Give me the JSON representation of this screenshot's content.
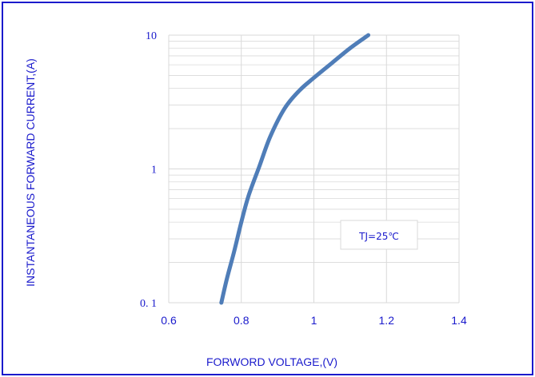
{
  "chart_data": {
    "type": "line",
    "title": "",
    "xlabel": "FORWORD VOLTAGE,(V)",
    "ylabel": "INSTANTANEOUS FORWARD CURRENT,(A)",
    "xlim": [
      0.6,
      1.4
    ],
    "ylim": [
      0.1,
      10
    ],
    "yscale": "log",
    "grid": true,
    "x_ticks": [
      "0.6",
      "0.8",
      "1",
      "1.2",
      "1.4"
    ],
    "y_ticks": [
      "0. 1",
      "1",
      "10"
    ],
    "annotation": "TJ=25℃",
    "series": [
      {
        "x": [
          0.745,
          0.76,
          0.78,
          0.8,
          0.82,
          0.85,
          0.88,
          0.92,
          0.96,
          1.0,
          1.05,
          1.1,
          1.15
        ],
        "y": [
          0.1,
          0.15,
          0.24,
          0.4,
          0.63,
          1.05,
          1.75,
          2.85,
          3.85,
          4.8,
          6.2,
          8.0,
          10.0
        ],
        "color": "#4f7db8"
      }
    ]
  },
  "colors": {
    "frame": "#1a1acc",
    "text": "#1a1acc",
    "grid": "#d9d9d9",
    "line": "#4f7db8"
  }
}
